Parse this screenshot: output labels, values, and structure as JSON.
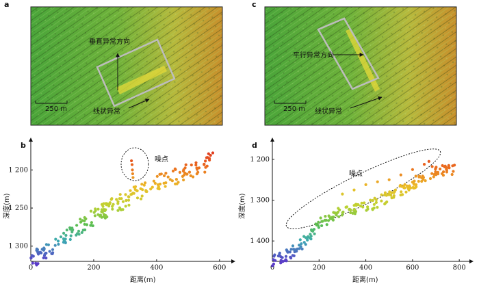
{
  "panels_top": [
    {
      "letter": "a",
      "scalebar": "250 m",
      "rect_label": "垂直异常方向",
      "arrow_label": "线状异常"
    },
    {
      "letter": "c",
      "scalebar": "250 m",
      "rect_label": "平行异常方向",
      "arrow_label": "线状异常"
    }
  ],
  "colors": {
    "map_green": "#5fae3a",
    "map_yellow": "#c7c23a",
    "map_orange": "#d28a2a",
    "outline": "#b8b8b8"
  },
  "chart_data": [
    {
      "type": "scatter",
      "letter": "b",
      "xlabel": "距离(m)",
      "ylabel": "深度(m)",
      "xlim": [
        0,
        620
      ],
      "ylim": [
        1320,
        1170
      ],
      "xticks": [
        0,
        200,
        400,
        600
      ],
      "yticks": [
        1200,
        1250,
        1300
      ],
      "ytick_labels": [
        "1 200",
        "1 250",
        "1 300"
      ],
      "annotation": "噪点",
      "noise_points": [
        [
          320,
          1188
        ],
        [
          322,
          1193
        ],
        [
          323,
          1200
        ],
        [
          324,
          1205
        ],
        [
          325,
          1210
        ]
      ],
      "main_trend": [
        [
          0,
          1320
        ],
        [
          50,
          1305
        ],
        [
          100,
          1290
        ],
        [
          150,
          1275
        ],
        [
          200,
          1262
        ],
        [
          250,
          1250
        ],
        [
          300,
          1240
        ],
        [
          350,
          1228
        ],
        [
          400,
          1218
        ],
        [
          450,
          1210
        ],
        [
          500,
          1202
        ],
        [
          550,
          1195
        ],
        [
          580,
          1180
        ]
      ]
    },
    {
      "type": "scatter",
      "letter": "d",
      "xlabel": "距离(m)",
      "ylabel": "深度(m)",
      "xlim": [
        0,
        820
      ],
      "ylim": [
        1450,
        1170
      ],
      "xticks": [
        0,
        200,
        400,
        600,
        800
      ],
      "yticks": [
        1200,
        1300,
        1400
      ],
      "ytick_labels": [
        "1 200",
        "1 300",
        "1 400"
      ],
      "annotation": "噪点",
      "noise_points": [
        [
          300,
          1285
        ],
        [
          350,
          1275
        ],
        [
          400,
          1262
        ],
        [
          450,
          1255
        ],
        [
          500,
          1250
        ],
        [
          550,
          1238
        ],
        [
          600,
          1225
        ],
        [
          650,
          1212
        ],
        [
          670,
          1205
        ]
      ],
      "main_trend": [
        [
          0,
          1448
        ],
        [
          50,
          1440
        ],
        [
          100,
          1420
        ],
        [
          150,
          1395
        ],
        [
          200,
          1360
        ],
        [
          250,
          1340
        ],
        [
          300,
          1330
        ],
        [
          350,
          1322
        ],
        [
          400,
          1318
        ],
        [
          450,
          1305
        ],
        [
          500,
          1290
        ],
        [
          550,
          1275
        ],
        [
          600,
          1260
        ],
        [
          650,
          1240
        ],
        [
          700,
          1228
        ],
        [
          750,
          1225
        ],
        [
          780,
          1226
        ]
      ]
    }
  ]
}
